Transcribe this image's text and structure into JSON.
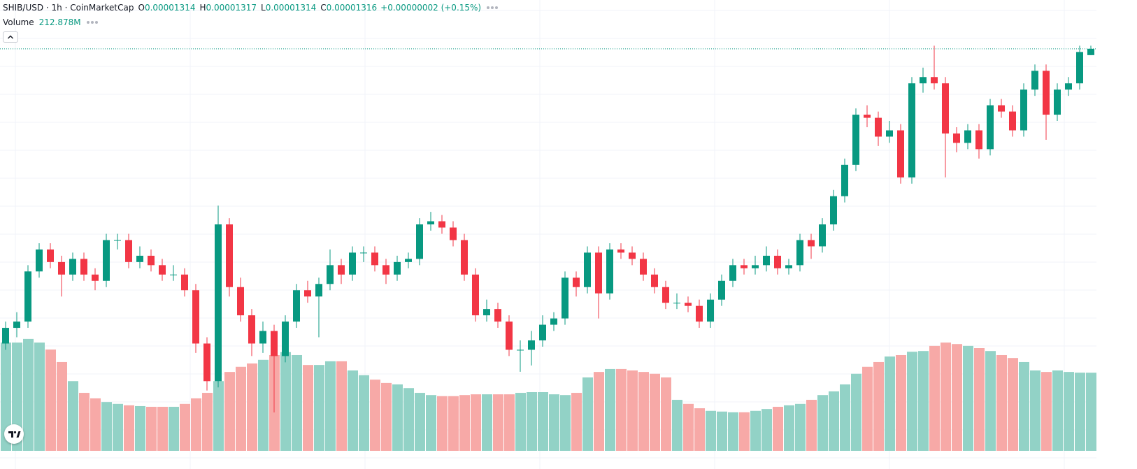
{
  "legend": {
    "symbol": "SHIB/USD · 1h · CoinMarketCap",
    "open_key": "O",
    "open": "0.00001314",
    "high_key": "H",
    "high": "0.00001317",
    "low_key": "L",
    "low": "0.00001314",
    "close_key": "C",
    "close": "0.00001316",
    "change": "+0.00000002 (+0.15%)",
    "volume_key": "Volume",
    "volume": "212.878M"
  },
  "chart_data": {
    "type": "candlestick",
    "up_color": "#089981",
    "down_color": "#f23645",
    "volume_up_color": "#92d2c6",
    "volume_down_color": "#f7a9a7",
    "grid": true,
    "ylim": [
      1.19e-05,
      1.324e-05
    ],
    "y2lim": [
      0,
      600000000
    ],
    "open": [
      1.222e-05,
      1.227e-05,
      1.229e-05,
      1.245e-05,
      1.252e-05,
      1.248e-05,
      1.244e-05,
      1.249e-05,
      1.244e-05,
      1.242e-05,
      1.255e-05,
      1.255e-05,
      1.248e-05,
      1.25e-05,
      1.247e-05,
      1.244e-05,
      1.244e-05,
      1.239e-05,
      1.222e-05,
      1.21e-05,
      1.26e-05,
      1.24e-05,
      1.231e-05,
      1.222e-05,
      1.226e-05,
      1.218e-05,
      1.229e-05,
      1.239e-05,
      1.237e-05,
      1.241e-05,
      1.247e-05,
      1.244e-05,
      1.251e-05,
      1.251e-05,
      1.247e-05,
      1.244e-05,
      1.248e-05,
      1.249e-05,
      1.26e-05,
      1.261e-05,
      1.259e-05,
      1.255e-05,
      1.244e-05,
      1.231e-05,
      1.233e-05,
      1.229e-05,
      1.22e-05,
      1.22e-05,
      1.223e-05,
      1.228e-05,
      1.23e-05,
      1.243e-05,
      1.24e-05,
      1.251e-05,
      1.238e-05,
      1.252e-05,
      1.251e-05,
      1.249e-05,
      1.244e-05,
      1.24e-05,
      1.235e-05,
      1.235e-05,
      1.234e-05,
      1.229e-05,
      1.236e-05,
      1.242e-05,
      1.247e-05,
      1.246e-05,
      1.247e-05,
      1.25e-05,
      1.246e-05,
      1.247e-05,
      1.255e-05,
      1.253e-05,
      1.26e-05,
      1.269e-05,
      1.279e-05,
      1.295e-05,
      1.294e-05,
      1.288e-05,
      1.29e-05,
      1.275e-05,
      1.305e-05,
      1.307e-05,
      1.305e-05,
      1.289e-05,
      1.286e-05,
      1.29e-05,
      1.284e-05,
      1.298e-05,
      1.296e-05,
      1.29e-05,
      1.303e-05,
      1.309e-05,
      1.295e-05,
      1.303e-05,
      1.305e-05,
      1.314e-05
    ],
    "high": [
      1.229e-05,
      1.232e-05,
      1.247e-05,
      1.254e-05,
      1.254e-05,
      1.25e-05,
      1.251e-05,
      1.251e-05,
      1.246e-05,
      1.257e-05,
      1.257e-05,
      1.257e-05,
      1.253e-05,
      1.252e-05,
      1.249e-05,
      1.247e-05,
      1.246e-05,
      1.241e-05,
      1.224e-05,
      1.266e-05,
      1.262e-05,
      1.243e-05,
      1.233e-05,
      1.229e-05,
      1.228e-05,
      1.231e-05,
      1.241e-05,
      1.242e-05,
      1.243e-05,
      1.252e-05,
      1.249e-05,
      1.253e-05,
      1.253e-05,
      1.253e-05,
      1.249e-05,
      1.25e-05,
      1.251e-05,
      1.262e-05,
      1.264e-05,
      1.263e-05,
      1.261e-05,
      1.257e-05,
      1.246e-05,
      1.236e-05,
      1.235e-05,
      1.231e-05,
      1.223e-05,
      1.226e-05,
      1.231e-05,
      1.232e-05,
      1.245e-05,
      1.245e-05,
      1.253e-05,
      1.253e-05,
      1.254e-05,
      1.254e-05,
      1.253e-05,
      1.251e-05,
      1.246e-05,
      1.242e-05,
      1.238e-05,
      1.237e-05,
      1.236e-05,
      1.238e-05,
      1.244e-05,
      1.249e-05,
      1.249e-05,
      1.25e-05,
      1.253e-05,
      1.252e-05,
      1.249e-05,
      1.257e-05,
      1.257e-05,
      1.262e-05,
      1.271e-05,
      1.281e-05,
      1.297e-05,
      1.298e-05,
      1.296e-05,
      1.293e-05,
      1.292e-05,
      1.307e-05,
      1.31e-05,
      1.317e-05,
      1.307e-05,
      1.291e-05,
      1.292e-05,
      1.292e-05,
      1.3e-05,
      1.3e-05,
      1.298e-05,
      1.305e-05,
      1.311e-05,
      1.311e-05,
      1.305e-05,
      1.307e-05,
      1.317e-05,
      1.317e-05
    ],
    "low": [
      1.22e-05,
      1.224e-05,
      1.227e-05,
      1.243e-05,
      1.246e-05,
      1.237e-05,
      1.242e-05,
      1.242e-05,
      1.239e-05,
      1.24e-05,
      1.252e-05,
      1.246e-05,
      1.246e-05,
      1.245e-05,
      1.242e-05,
      1.242e-05,
      1.237e-05,
      1.219e-05,
      1.207e-05,
      1.208e-05,
      1.237e-05,
      1.229e-05,
      1.218e-05,
      1.219e-05,
      1.2e-05,
      1.216e-05,
      1.227e-05,
      1.235e-05,
      1.224e-05,
      1.239e-05,
      1.241e-05,
      1.242e-05,
      1.248e-05,
      1.245e-05,
      1.241e-05,
      1.242e-05,
      1.246e-05,
      1.247e-05,
      1.258e-05,
      1.257e-05,
      1.253e-05,
      1.242e-05,
      1.229e-05,
      1.229e-05,
      1.227e-05,
      1.218e-05,
      1.213e-05,
      1.215e-05,
      1.221e-05,
      1.226e-05,
      1.228e-05,
      1.237e-05,
      1.238e-05,
      1.23e-05,
      1.236e-05,
      1.249e-05,
      1.247e-05,
      1.242e-05,
      1.238e-05,
      1.233e-05,
      1.233e-05,
      1.232e-05,
      1.227e-05,
      1.227e-05,
      1.234e-05,
      1.24e-05,
      1.244e-05,
      1.244e-05,
      1.245e-05,
      1.244e-05,
      1.244e-05,
      1.245e-05,
      1.249e-05,
      1.251e-05,
      1.258e-05,
      1.267e-05,
      1.277e-05,
      1.291e-05,
      1.285e-05,
      1.286e-05,
      1.273e-05,
      1.273e-05,
      1.302e-05,
      1.303e-05,
      1.275e-05,
      1.283e-05,
      1.284e-05,
      1.281e-05,
      1.282e-05,
      1.294e-05,
      1.288e-05,
      1.288e-05,
      1.301e-05,
      1.287e-05,
      1.293e-05,
      1.301e-05,
      1.303e-05,
      1.314e-05
    ],
    "close": [
      1.227e-05,
      1.229e-05,
      1.245e-05,
      1.252e-05,
      1.248e-05,
      1.244e-05,
      1.249e-05,
      1.244e-05,
      1.242e-05,
      1.255e-05,
      1.255e-05,
      1.248e-05,
      1.25e-05,
      1.247e-05,
      1.244e-05,
      1.244e-05,
      1.239e-05,
      1.222e-05,
      1.21e-05,
      1.26e-05,
      1.24e-05,
      1.231e-05,
      1.222e-05,
      1.226e-05,
      1.218e-05,
      1.229e-05,
      1.239e-05,
      1.237e-05,
      1.241e-05,
      1.247e-05,
      1.244e-05,
      1.251e-05,
      1.251e-05,
      1.247e-05,
      1.244e-05,
      1.248e-05,
      1.249e-05,
      1.26e-05,
      1.261e-05,
      1.259e-05,
      1.255e-05,
      1.244e-05,
      1.231e-05,
      1.233e-05,
      1.229e-05,
      1.22e-05,
      1.22e-05,
      1.223e-05,
      1.228e-05,
      1.23e-05,
      1.243e-05,
      1.24e-05,
      1.251e-05,
      1.238e-05,
      1.252e-05,
      1.251e-05,
      1.249e-05,
      1.244e-05,
      1.24e-05,
      1.235e-05,
      1.235e-05,
      1.234e-05,
      1.229e-05,
      1.236e-05,
      1.242e-05,
      1.247e-05,
      1.246e-05,
      1.247e-05,
      1.25e-05,
      1.246e-05,
      1.247e-05,
      1.255e-05,
      1.253e-05,
      1.26e-05,
      1.269e-05,
      1.279e-05,
      1.295e-05,
      1.294e-05,
      1.288e-05,
      1.29e-05,
      1.275e-05,
      1.305e-05,
      1.307e-05,
      1.305e-05,
      1.289e-05,
      1.286e-05,
      1.29e-05,
      1.284e-05,
      1.298e-05,
      1.296e-05,
      1.29e-05,
      1.303e-05,
      1.309e-05,
      1.295e-05,
      1.303e-05,
      1.305e-05,
      1.315e-05,
      1.316e-05
    ],
    "volume": [
      295000000,
      295000000,
      305000000,
      295000000,
      276000000,
      242000000,
      190000000,
      158000000,
      143000000,
      133000000,
      128000000,
      124000000,
      122000000,
      120000000,
      120000000,
      120000000,
      128000000,
      143000000,
      158000000,
      190000000,
      215000000,
      229000000,
      238000000,
      248000000,
      261000000,
      269000000,
      261000000,
      234000000,
      234000000,
      244000000,
      244000000,
      219000000,
      206000000,
      194000000,
      185000000,
      181000000,
      171000000,
      158000000,
      152000000,
      149000000,
      149000000,
      152000000,
      154000000,
      154000000,
      154000000,
      154000000,
      158000000,
      160000000,
      160000000,
      154000000,
      152000000,
      158000000,
      200000000,
      215000000,
      223000000,
      223000000,
      219000000,
      215000000,
      210000000,
      200000000,
      139000000,
      128000000,
      116000000,
      109000000,
      107000000,
      105000000,
      105000000,
      109000000,
      114000000,
      120000000,
      124000000,
      128000000,
      139000000,
      152000000,
      162000000,
      181000000,
      210000000,
      229000000,
      242000000,
      257000000,
      261000000,
      270000000,
      272000000,
      286000000,
      295000000,
      291000000,
      286000000,
      280000000,
      272000000,
      261000000,
      253000000,
      242000000,
      219000000,
      215000000,
      219000000,
      215000000,
      213000000,
      212878000
    ]
  }
}
